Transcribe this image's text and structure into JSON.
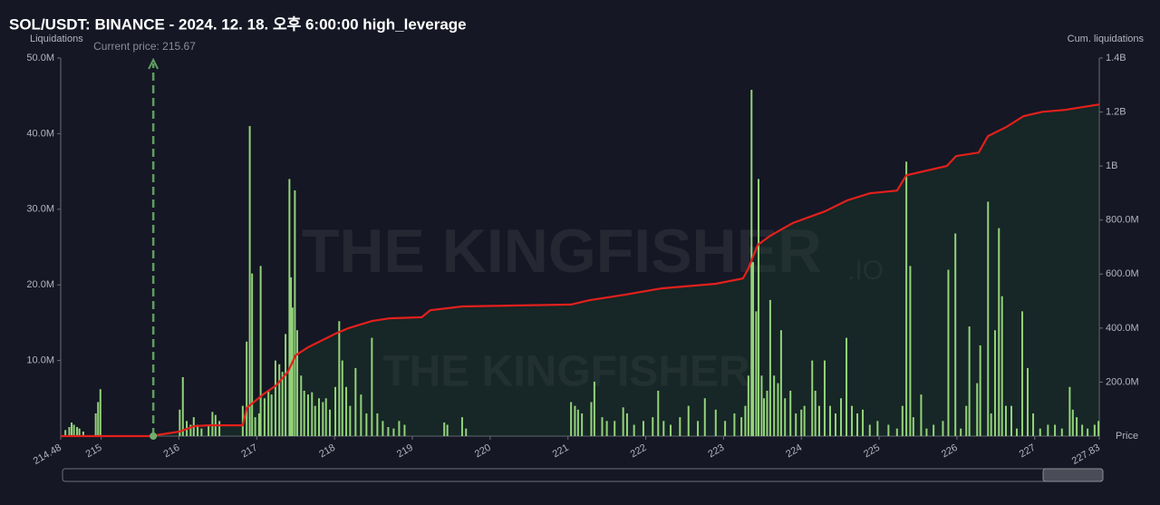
{
  "chart_data": {
    "type": "bar",
    "title": "SOL/USDT: BINANCE - 2024. 12. 18. 오후 6:00:00 high_leverage",
    "y_label": "Liquidations",
    "y2_label": "Cum. liquidations",
    "x_label": "Price",
    "watermark": [
      "THE KINGFISHER",
      ".IO"
    ],
    "annotations": [
      {
        "text": "Current price: 215.67",
        "x": 215.67
      }
    ],
    "xlim": [
      214.48,
      227.83
    ],
    "xticks": [
      214.48,
      215,
      216,
      217,
      218,
      219,
      220,
      221,
      222,
      223,
      224,
      225,
      226,
      227,
      227.83
    ],
    "ylim": [
      0,
      50000000
    ],
    "yticks": [
      {
        "value": 10000000,
        "label": "10.0M"
      },
      {
        "value": 20000000,
        "label": "20.0M"
      },
      {
        "value": 30000000,
        "label": "30.0M"
      },
      {
        "value": 40000000,
        "label": "40.0M"
      },
      {
        "value": 50000000,
        "label": "50.0M"
      }
    ],
    "y2lim": [
      0,
      1400000000
    ],
    "y2ticks": [
      {
        "value": 200000000,
        "label": "200.0M"
      },
      {
        "value": 400000000,
        "label": "400.0M"
      },
      {
        "value": 600000000,
        "label": "600.0M"
      },
      {
        "value": 800000000,
        "label": "800.0M"
      },
      {
        "value": 1000000000,
        "label": "1B"
      },
      {
        "value": 1200000000,
        "label": "1.2B"
      },
      {
        "value": 1400000000,
        "label": "1.4B"
      }
    ],
    "series": [
      {
        "type": "bar",
        "color": "#93d37a",
        "x": [
          214.54,
          214.59,
          214.62,
          214.65,
          214.69,
          214.72,
          214.77,
          214.93,
          214.96,
          214.99,
          216.01,
          216.05,
          216.1,
          216.15,
          216.19,
          216.24,
          216.29,
          216.38,
          216.43,
          216.47,
          216.52,
          216.82,
          216.87,
          216.91,
          216.94,
          216.98,
          217.03,
          217.05,
          217.1,
          217.15,
          217.19,
          217.24,
          217.29,
          217.33,
          217.37,
          217.42,
          217.44,
          217.46,
          217.49,
          217.52,
          217.57,
          217.61,
          217.66,
          217.71,
          217.75,
          217.8,
          217.85,
          217.89,
          217.94,
          218.01,
          218.06,
          218.1,
          218.15,
          218.2,
          218.27,
          218.34,
          218.41,
          218.48,
          218.55,
          218.62,
          218.69,
          218.76,
          218.83,
          218.9,
          219.41,
          219.45,
          219.64,
          219.69,
          221.04,
          221.09,
          221.13,
          221.18,
          221.3,
          221.34,
          221.44,
          221.5,
          221.6,
          221.71,
          221.76,
          221.85,
          221.97,
          222.09,
          222.16,
          222.23,
          222.32,
          222.44,
          222.55,
          222.67,
          222.76,
          222.9,
          223.02,
          223.14,
          223.23,
          223.28,
          223.32,
          223.36,
          223.38,
          223.42,
          223.45,
          223.49,
          223.52,
          223.56,
          223.6,
          223.65,
          223.7,
          223.74,
          223.79,
          223.86,
          223.93,
          224.0,
          224.04,
          224.14,
          224.18,
          224.23,
          224.3,
          224.37,
          224.44,
          224.51,
          224.58,
          224.65,
          224.72,
          224.79,
          224.88,
          224.98,
          225.12,
          225.23,
          225.3,
          225.35,
          225.4,
          225.44,
          225.54,
          225.61,
          225.7,
          225.82,
          225.89,
          225.98,
          226.05,
          226.12,
          226.16,
          226.26,
          226.3,
          226.4,
          226.44,
          226.49,
          226.54,
          226.58,
          226.63,
          226.7,
          226.77,
          226.84,
          226.91,
          226.98,
          227.07,
          227.17,
          227.26,
          227.35,
          227.45,
          227.49,
          227.54,
          227.61,
          227.68,
          227.77,
          227.82
        ],
        "values": [
          800000,
          1200000,
          1800000,
          1500000,
          1200000,
          1000000,
          600000,
          3000000,
          4500000,
          6200000,
          3500000,
          7800000,
          2000000,
          1500000,
          2500000,
          1500000,
          1000000,
          1500000,
          3200000,
          2800000,
          2000000,
          4000000,
          12500000,
          41000000,
          21500000,
          2500000,
          3000000,
          22500000,
          5000000,
          6000000,
          5500000,
          10000000,
          9500000,
          8500000,
          13500000,
          34000000,
          21000000,
          17000000,
          32500000,
          14000000,
          8000000,
          6000000,
          5500000,
          5800000,
          4000000,
          5000000,
          4500000,
          5000000,
          3500000,
          6500000,
          15200000,
          10000000,
          6500000,
          4000000,
          9000000,
          5500000,
          3000000,
          13000000,
          3000000,
          2000000,
          1200000,
          1000000,
          2000000,
          1500000,
          1800000,
          1500000,
          2500000,
          1000000,
          4500000,
          4000000,
          3500000,
          3000000,
          4500000,
          7200000,
          2500000,
          2000000,
          2000000,
          3800000,
          3000000,
          1500000,
          2000000,
          2500000,
          6000000,
          2000000,
          1500000,
          2500000,
          4000000,
          2000000,
          5000000,
          3500000,
          2000000,
          3000000,
          2500000,
          4000000,
          8000000,
          45800000,
          23000000,
          16500000,
          34000000,
          8000000,
          5000000,
          6000000,
          18000000,
          8000000,
          7000000,
          14000000,
          5000000,
          6000000,
          3000000,
          3500000,
          4000000,
          10000000,
          6000000,
          4000000,
          10000000,
          4000000,
          3000000,
          5000000,
          13000000,
          4000000,
          3000000,
          3500000,
          1500000,
          2000000,
          1500000,
          1000000,
          4000000,
          36300000,
          22500000,
          2500000,
          5500000,
          1000000,
          1500000,
          2000000,
          22000000,
          26800000,
          1000000,
          4000000,
          14500000,
          7000000,
          12000000,
          31000000,
          3000000,
          14000000,
          27500000,
          18500000,
          4000000,
          4000000,
          1000000,
          16500000,
          9000000,
          3000000,
          1000000,
          1500000,
          1500000,
          1000000,
          6500000,
          3500000,
          2500000,
          1500000,
          1000000,
          1500000,
          2000000
        ]
      },
      {
        "type": "line",
        "axis": "y2",
        "color": "#e3201c",
        "fill": "#1d4a2a",
        "x": [
          214.48,
          215.63,
          216.01,
          216.2,
          216.38,
          216.82,
          216.87,
          217.08,
          217.25,
          217.4,
          217.5,
          217.66,
          218.01,
          218.18,
          218.48,
          218.71,
          219.12,
          219.23,
          219.64,
          221.04,
          221.27,
          221.74,
          222.2,
          222.9,
          223.25,
          223.32,
          223.44,
          223.6,
          223.89,
          224.3,
          224.59,
          224.88,
          225.23,
          225.35,
          225.87,
          225.99,
          226.28,
          226.4,
          226.63,
          226.86,
          227.1,
          227.39,
          227.83
        ],
        "values": [
          0,
          0,
          17000000,
          37000000,
          40000000,
          40000000,
          104000000,
          154000000,
          188000000,
          238000000,
          299000000,
          329000000,
          379000000,
          400000000,
          426000000,
          436000000,
          440000000,
          466000000,
          480000000,
          487000000,
          503000000,
          524000000,
          547000000,
          564000000,
          584000000,
          621000000,
          708000000,
          742000000,
          789000000,
          832000000,
          873000000,
          899000000,
          909000000,
          966000000,
          1000000000,
          1037000000,
          1050000000,
          1111000000,
          1144000000,
          1185000000,
          1201000000,
          1208000000,
          1228000000
        ]
      }
    ]
  }
}
